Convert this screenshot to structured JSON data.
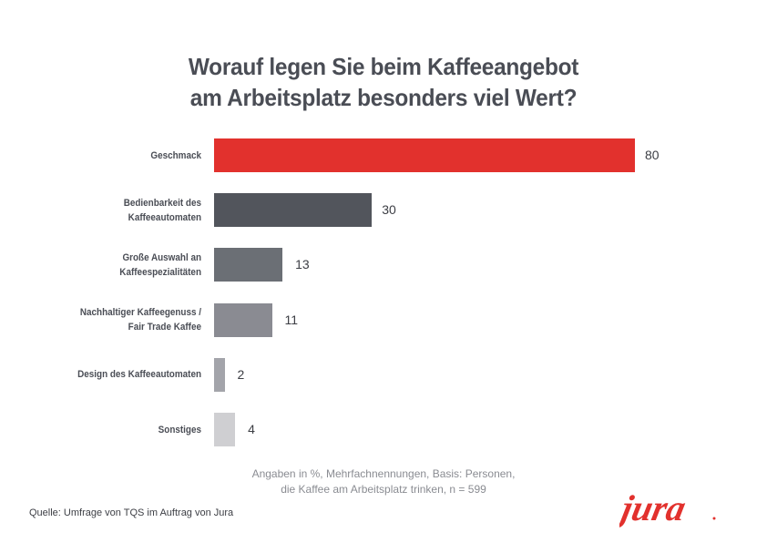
{
  "chart_data": {
    "type": "bar",
    "orientation": "horizontal",
    "title": [
      "Worauf legen Sie beim Kaffeeangebot",
      "am Arbeitsplatz besonders viel Wert?"
    ],
    "categories": [
      [
        "Geschmack"
      ],
      [
        "Bedienbarkeit des",
        "Kaffeeautomaten"
      ],
      [
        "Große Auswahl an",
        "Kaffeespezialitäten"
      ],
      [
        "Nachhaltiger  Kaffeegenuss /",
        "Fair Trade Kaffee"
      ],
      [
        "Design des Kaffeeautomaten"
      ],
      [
        "Sonstiges"
      ]
    ],
    "values": [
      80,
      30,
      13,
      11,
      2,
      4
    ],
    "value_labels": [
      "80",
      "30",
      "13",
      "11",
      "2",
      "4"
    ],
    "colors": [
      "#e2312d",
      "#52555c",
      "#6b6f75",
      "#8a8b92",
      "#a3a4aa",
      "#cfcfd2"
    ],
    "unit": "%",
    "xlim": [
      0,
      80
    ],
    "grid": false,
    "legend": "none"
  },
  "note": [
    "Angaben in %, Mehrfachnennungen, Basis: Personen,",
    "die Kaffee am Arbeitsplatz trinken, n = 599"
  ],
  "source": "Quelle: Umfrage von TQS im Auftrag von Jura",
  "logo": {
    "text": "jura",
    "color": "#e2312d"
  }
}
